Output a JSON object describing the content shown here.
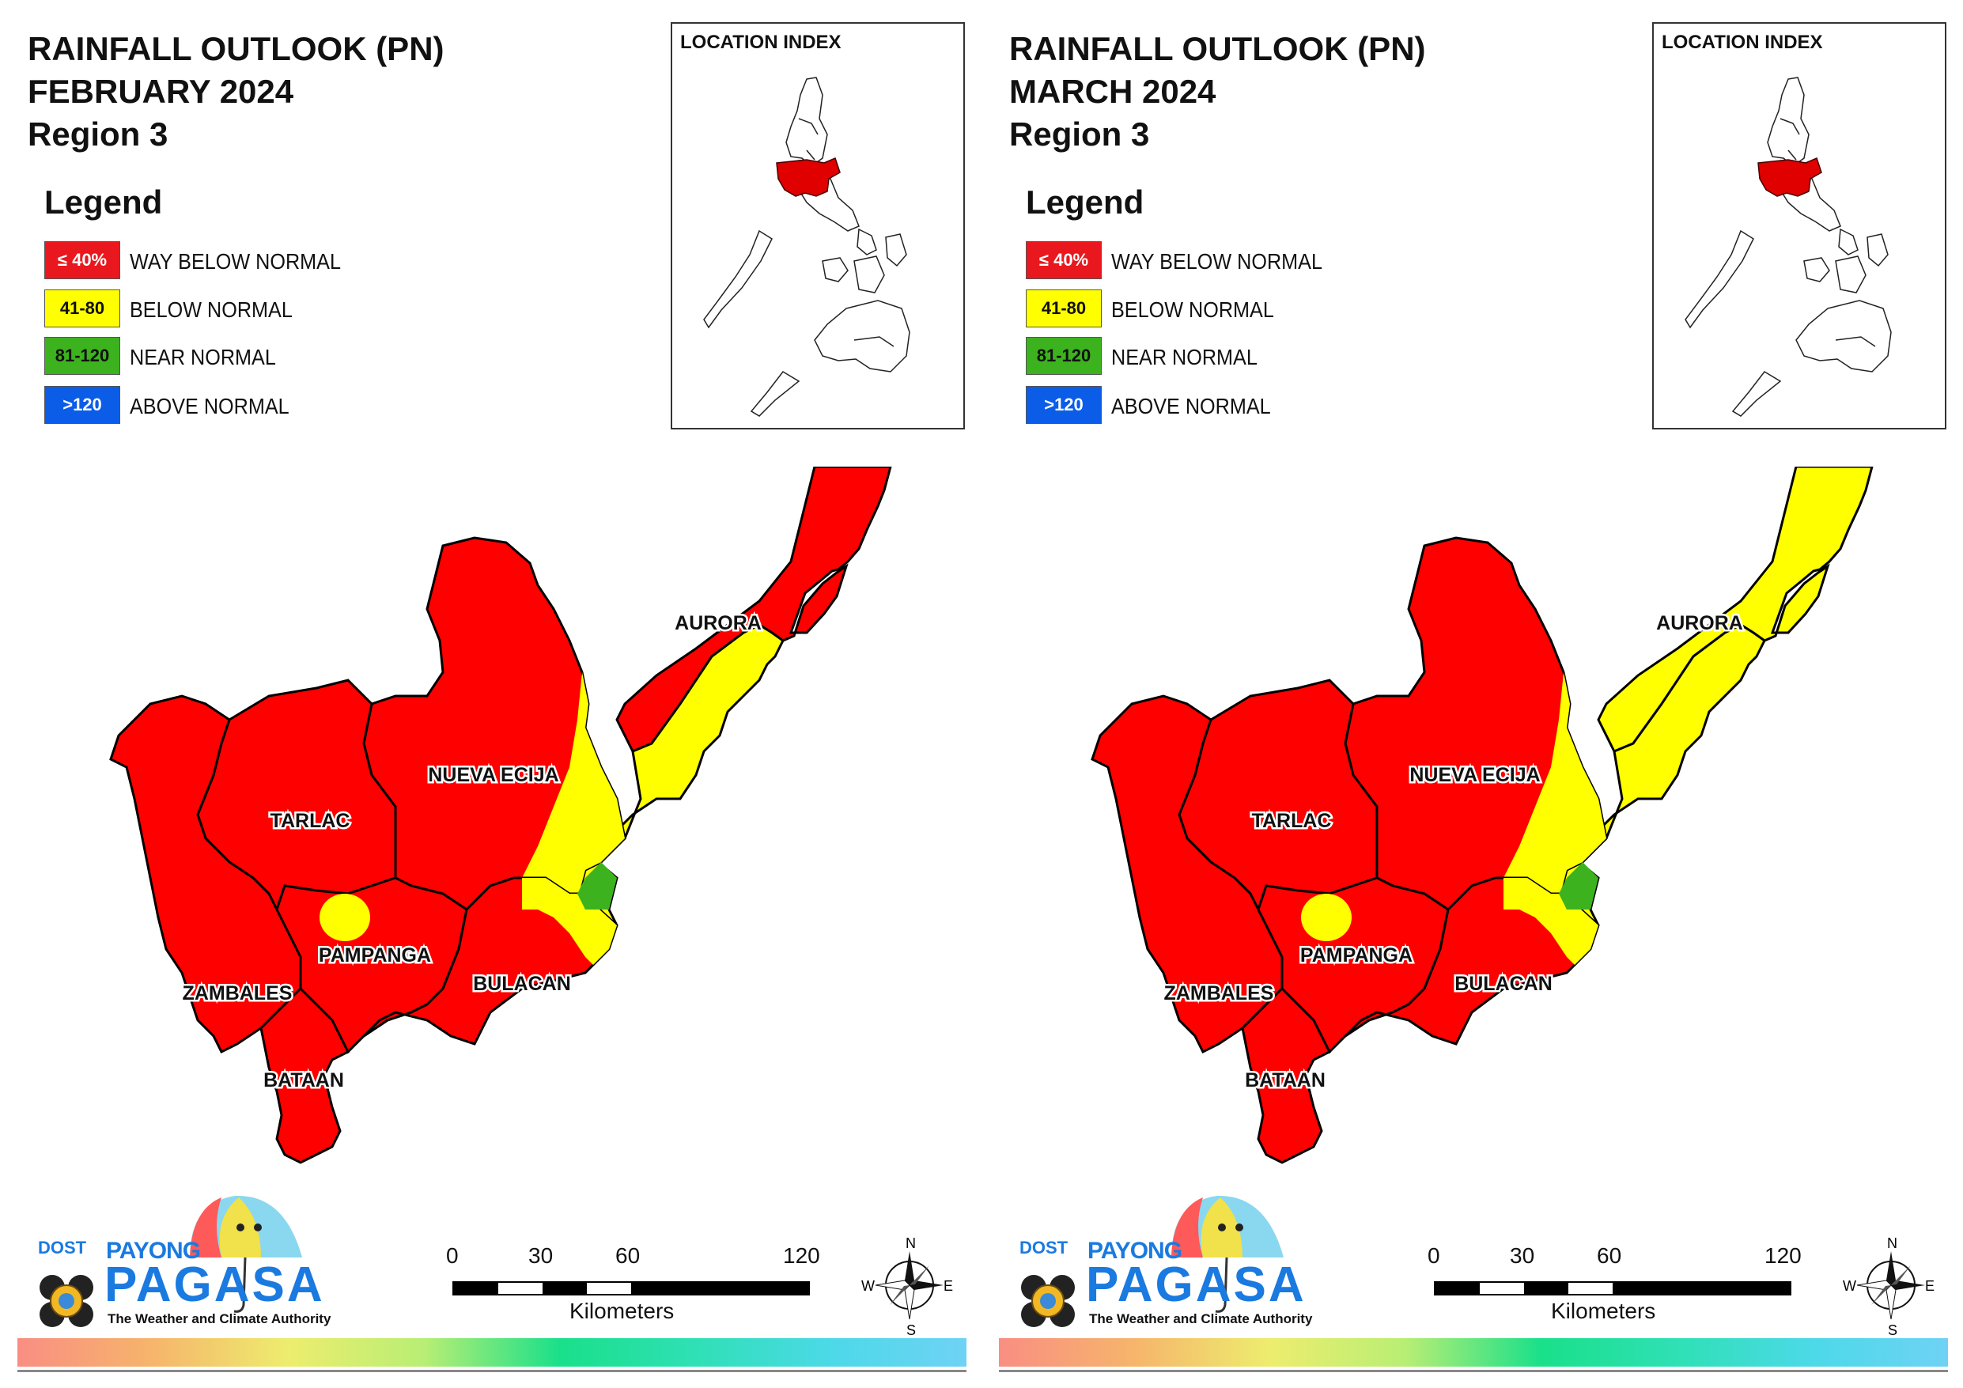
{
  "colors": {
    "way_below": "#ff0000",
    "below": "#ffff00",
    "near": "#3cb21e",
    "above": "#0b5de8",
    "boundary": "#000000"
  },
  "legend": {
    "title": "Legend",
    "items": [
      {
        "range": "≤ 40%",
        "label": "WAY BELOW NORMAL",
        "color": "#e8181e"
      },
      {
        "range": "41-80",
        "label": "BELOW NORMAL",
        "color": "#ffff00"
      },
      {
        "range": "81-120",
        "label": "NEAR NORMAL",
        "color": "#3cb21e"
      },
      {
        "range": ">120",
        "label": "ABOVE NORMAL",
        "color": "#0b5de8"
      }
    ]
  },
  "location_index": {
    "label": "LOCATION INDEX"
  },
  "map_labels": {
    "aurora": "AURORA",
    "nueva_ecija": "NUEVA ECIJA",
    "tarlac": "TARLAC",
    "pampanga": "PAMPANGA",
    "zambales": "ZAMBALES",
    "bulacan": "BULACAN",
    "bataan": "BATAAN"
  },
  "scale": {
    "ticks": [
      "0",
      "30",
      "60",
      "120"
    ],
    "unit": "Kilometers"
  },
  "compass": {
    "n": "N",
    "s": "S",
    "e": "E",
    "w": "W"
  },
  "logo": {
    "dost": "DOST",
    "payong": "PAYONG",
    "pagasa": "PAGASA",
    "tagline": "The Weather and Climate Authority"
  },
  "panels": [
    {
      "title_line1": "RAINFALL OUTLOOK (PN)",
      "title_line2": "FEBRUARY 2024",
      "title_line3": "Region 3",
      "category_by_area": {
        "aurora_north": "way_below",
        "aurora_south_strip": "below",
        "nueva_ecija": "way_below",
        "nueva_ecija_east_edge": "below",
        "tarlac": "way_below",
        "pampanga": "way_below",
        "pampanga_spot": "below",
        "zambales": "way_below",
        "bataan": "way_below",
        "bulacan": "way_below",
        "bulacan_east": "below",
        "bulacan_aurora_border_spot": "near"
      }
    },
    {
      "title_line1": "RAINFALL OUTLOOK (PN)",
      "title_line2": "MARCH 2024",
      "title_line3": "Region 3",
      "category_by_area": {
        "aurora_north": "below",
        "aurora_south_strip": "below",
        "nueva_ecija": "way_below",
        "nueva_ecija_east_edge": "below",
        "tarlac": "way_below",
        "pampanga": "way_below",
        "pampanga_spot": "below",
        "zambales": "way_below",
        "bataan": "way_below",
        "bulacan": "way_below",
        "bulacan_east": "below",
        "bulacan_aurora_border_spot": "near"
      }
    }
  ]
}
